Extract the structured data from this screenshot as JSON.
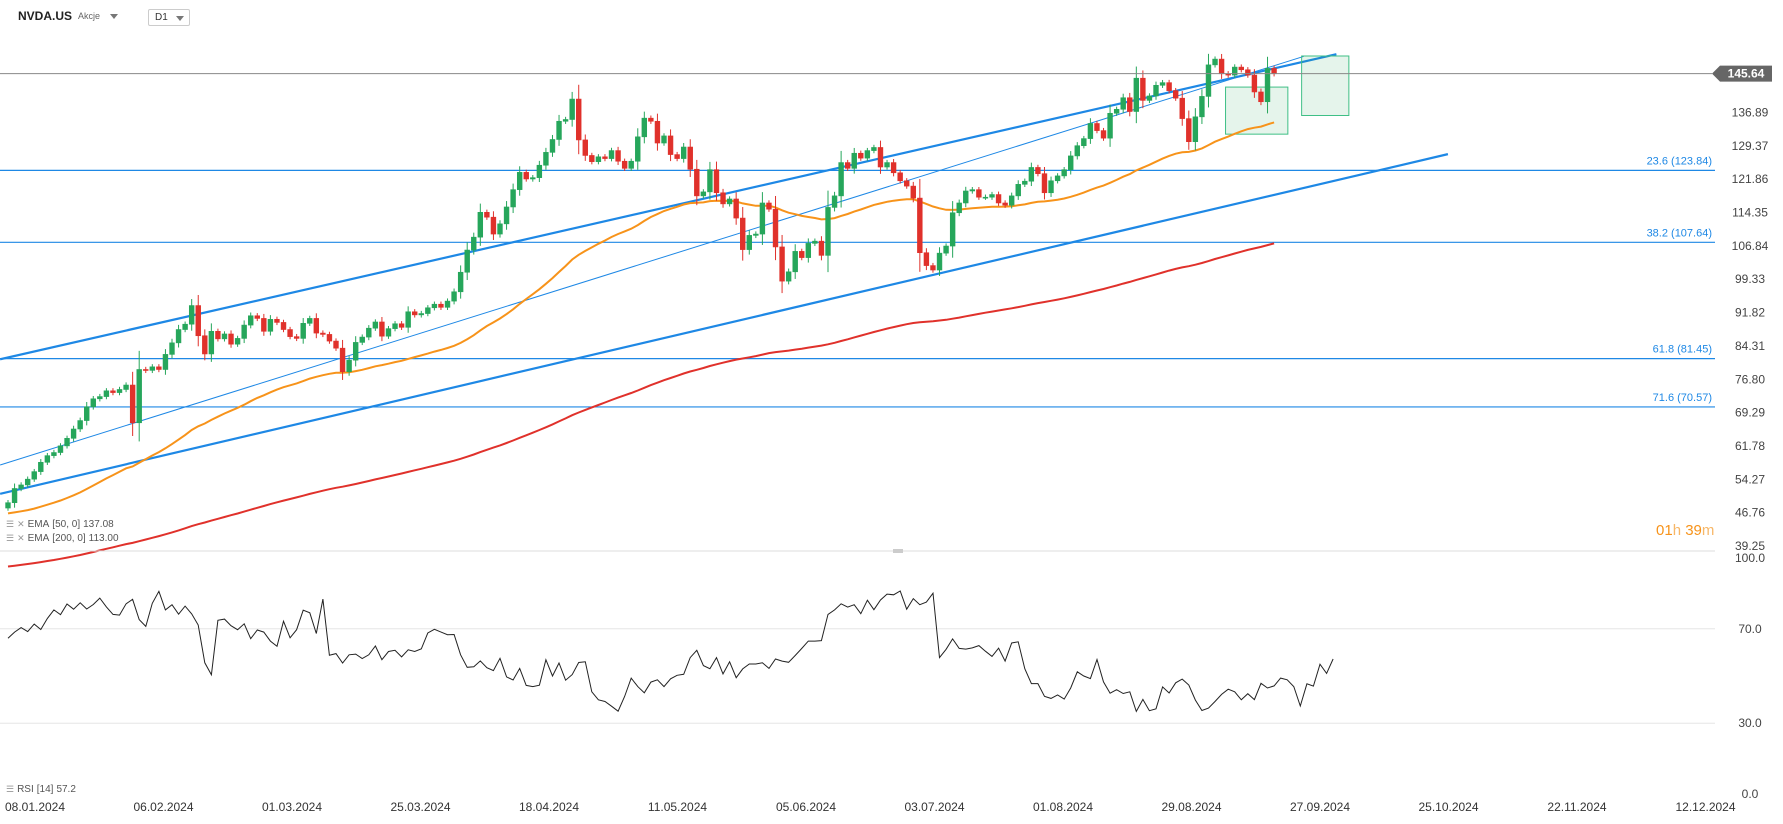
{
  "header": {
    "symbol": "NVDA.US",
    "asset_type": "Akcje",
    "timeframe": "D1"
  },
  "indicators": {
    "ema50": {
      "label": "EMA",
      "params": "[50, 0]",
      "value": "137.08",
      "color": "#f7931a"
    },
    "ema200": {
      "label": "EMA",
      "params": "[200, 0]",
      "value": "113.00",
      "color": "#e0312b"
    },
    "rsi": {
      "label": "RSI",
      "params": "[14]",
      "value": "57.2"
    }
  },
  "countdown": {
    "hours": "01",
    "h_unit": "h",
    "minutes": "39",
    "m_unit": "m"
  },
  "chart_data": {
    "type": "candlestick",
    "up_color": "#26a65b",
    "down_color": "#e0312b",
    "x_axis": {
      "ticks": [
        "08.01.2024",
        "06.02.2024",
        "01.03.2024",
        "25.03.2024",
        "18.04.2024",
        "11.05.2024",
        "05.06.2024",
        "03.07.2024",
        "01.08.2024",
        "29.08.2024",
        "27.09.2024",
        "25.10.2024",
        "22.11.2024",
        "12.12.2024"
      ]
    },
    "y_axis": {
      "ticks": [
        "145.64",
        "136.89",
        "129.37",
        "121.86",
        "114.35",
        "106.84",
        "99.33",
        "91.82",
        "84.31",
        "76.80",
        "69.29",
        "61.78",
        "54.27",
        "46.76",
        "39.25"
      ],
      "range": [
        39.25,
        150.5
      ]
    },
    "last_price": "145.64",
    "fib_levels": [
      {
        "label": "23.6 (123.84)",
        "value": 123.84
      },
      {
        "label": "38.2 (107.64)",
        "value": 107.64
      },
      {
        "label": "61.8 (81.45)",
        "value": 81.45
      },
      {
        "label": "71.6 (70.57)",
        "value": 70.57
      }
    ],
    "ema50_color": "#f7931a",
    "ema200_color": "#e0312b",
    "channel_color": "#1e88e5",
    "close_series": [
      49.0,
      52.2,
      53.0,
      54.3,
      56.0,
      58.1,
      59.6,
      60.3,
      61.8,
      63.5,
      65.6,
      67.5,
      70.6,
      72.4,
      72.9,
      74.2,
      73.8,
      74.5,
      75.5,
      67.0,
      79.0,
      78.8,
      79.6,
      79.0,
      82.4,
      85.0,
      88.0,
      89.2,
      93.4,
      86.6,
      82.5,
      87.6,
      85.9,
      87.0,
      84.7,
      86.0,
      89.0,
      91.1,
      90.5,
      87.6,
      90.3,
      89.6,
      88.0,
      86.4,
      86.0,
      89.4,
      90.5,
      87.2,
      86.9,
      85.4,
      83.8,
      78.5,
      81.1,
      85.1,
      86.3,
      88.3,
      89.7,
      86.5,
      88.2,
      89.3,
      88.5,
      92.0,
      91.3,
      91.6,
      92.9,
      93.7,
      93.0,
      94.4,
      96.5,
      100.9,
      105.9,
      108.8,
      114.4,
      113.3,
      109.5,
      111.8,
      115.6,
      119.5,
      123.4,
      121.9,
      122.2,
      125.0,
      127.9,
      130.8,
      134.9,
      135.3,
      139.9,
      130.7,
      127.2,
      125.8,
      126.9,
      126.5,
      128.3,
      125.9,
      124.3,
      125.9,
      131.4,
      135.6,
      134.9,
      130.0,
      131.6,
      127.4,
      126.5,
      129.1,
      124.1,
      118.1,
      119.0,
      124.0,
      118.8,
      116.3,
      117.4,
      113.1,
      106.0,
      109.2,
      109.5,
      116.5,
      115.1,
      106.6,
      98.9,
      101.0,
      105.6,
      104.2,
      107.4,
      107.9,
      104.7,
      115.5,
      118.1,
      125.6,
      124.3,
      127.7,
      126.6,
      128.3,
      129.0,
      124.6,
      125.6,
      123.3,
      121.5,
      120.3,
      117.6,
      105.3,
      102.4,
      101.4,
      105.2,
      106.8,
      114.3,
      116.5,
      119.2,
      119.5,
      117.8,
      117.8,
      118.4,
      116.5,
      116.0,
      118.1,
      120.7,
      121.4,
      124.5,
      123.1,
      118.8,
      121.5,
      122.6,
      124.0,
      127.1,
      129.4,
      131.0,
      134.4,
      132.8,
      131.1,
      136.7,
      137.6,
      140.2,
      137.1,
      144.6,
      139.6,
      140.6,
      143.0,
      143.6,
      141.8,
      140.1,
      135.5,
      130.3,
      135.9,
      140.5,
      147.6,
      148.9,
      145.6,
      145.3,
      147.1,
      146.5,
      145.3,
      141.5,
      139.3,
      146.8,
      145.6
    ],
    "rsi_series": [
      66.0,
      68.6,
      70.5,
      68.8,
      72.0,
      69.7,
      74.4,
      78.0,
      76.0,
      80.5,
      78.3,
      81.0,
      78.4,
      80.3,
      83.0,
      79.3,
      76.1,
      75.8,
      80.6,
      82.5,
      73.9,
      71.0,
      80.8,
      85.9,
      78.0,
      80.2,
      76.2,
      79.6,
      76.3,
      71.6,
      55.6,
      50.5,
      73.6,
      74.1,
      71.3,
      69.6,
      72.1,
      65.8,
      69.5,
      68.6,
      64.8,
      62.6,
      73.2,
      66.2,
      69.6,
      77.9,
      76.8,
      68.0,
      82.6,
      58.8,
      59.5,
      55.5,
      59.0,
      59.3,
      57.4,
      59.0,
      62.7,
      56.9,
      60.4,
      60.9,
      58.1,
      61.1,
      60.4,
      61.5,
      68.2,
      69.8,
      68.6,
      67.5,
      67.6,
      59.0,
      53.7,
      53.9,
      56.4,
      53.5,
      52.3,
      57.5,
      49.6,
      48.3,
      53.2,
      46.0,
      45.5,
      46.1,
      56.9,
      50.0,
      55.5,
      48.2,
      50.6,
      55.7,
      56.0,
      43.3,
      39.9,
      39.2,
      37.2,
      35.1,
      41.3,
      49.1,
      45.5,
      42.9,
      47.4,
      48.4,
      45.5,
      48.8,
      50.3,
      50.7,
      57.8,
      60.9,
      54.4,
      53.1,
      57.8,
      50.9,
      56.0,
      49.3,
      53.0,
      55.1,
      55.1,
      55.6,
      53.2,
      57.2,
      56.3,
      55.8,
      58.7,
      61.7,
      64.8,
      64.8,
      65.0,
      76.1,
      78.0,
      80.6,
      79.2,
      80.2,
      76.4,
      82.1,
      78.1,
      82.2,
      84.7,
      84.4,
      86.0,
      78.3,
      82.8,
      80.2,
      81.3,
      85.1,
      57.8,
      61.3,
      65.7,
      61.7,
      61.4,
      61.9,
      62.9,
      60.5,
      58.3,
      61.8,
      56.3,
      64.0,
      64.5,
      53.1,
      46.8,
      46.8,
      41.4,
      40.5,
      42.0,
      40.2,
      44.9,
      51.8,
      50.0,
      48.9,
      57.0,
      47.5,
      42.7,
      44.2,
      42.6,
      43.3,
      35.0,
      40.1,
      35.3,
      36.1,
      45.4,
      42.8,
      47.1,
      48.7,
      46.2,
      39.8,
      35.4,
      36.4,
      39.2,
      42.2,
      44.4,
      43.3,
      39.9,
      42.5,
      40.0,
      46.9,
      44.9,
      45.8,
      49.1,
      48.4,
      45.5,
      37.3,
      46.7,
      45.7,
      55.0,
      51.1,
      57.2
    ]
  }
}
